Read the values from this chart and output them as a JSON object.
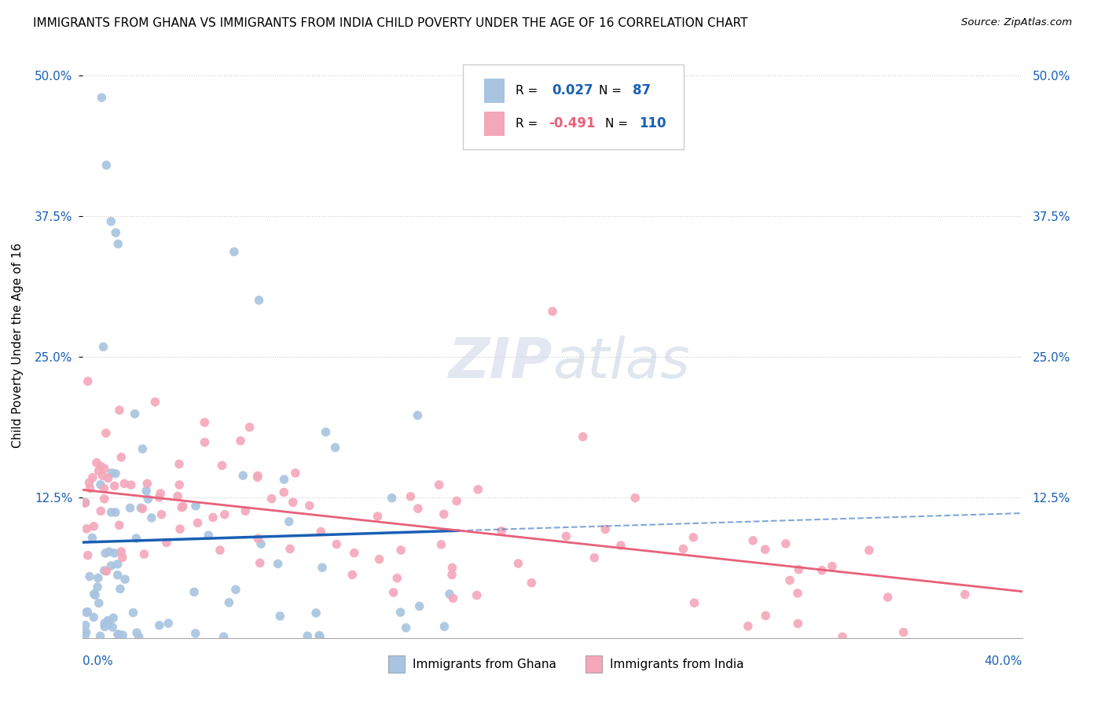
{
  "title": "IMMIGRANTS FROM GHANA VS IMMIGRANTS FROM INDIA CHILD POVERTY UNDER THE AGE OF 16 CORRELATION CHART",
  "source": "Source: ZipAtlas.com",
  "ylabel": "Child Poverty Under the Age of 16",
  "xlim": [
    0.0,
    0.4
  ],
  "ylim": [
    0.0,
    0.52
  ],
  "ghana_R": 0.027,
  "ghana_N": 87,
  "india_R": -0.491,
  "india_N": 110,
  "ghana_color": "#a8c4e0",
  "india_color": "#f4a7b9",
  "ghana_line_color": "#1a5fb4",
  "india_line_color": "#e8607a",
  "legend_text_blue": "#1a5fb4",
  "legend_text_pink": "#e8607a",
  "ytick_vals": [
    0.125,
    0.25,
    0.375,
    0.5
  ],
  "ytick_labels": [
    "12.5%",
    "25.0%",
    "37.5%",
    "50.0%"
  ]
}
